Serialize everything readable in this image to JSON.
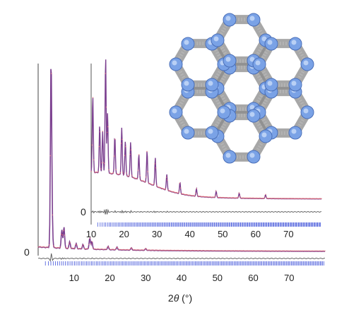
{
  "chart_data": [
    {
      "type": "line",
      "panel": "main",
      "xlabel_prefix": "2",
      "xlabel_symbol": "θ",
      "xlabel_suffix": " (°)",
      "xlim": [
        0,
        80
      ],
      "x_ticks": [
        "10",
        "20",
        "30",
        "40",
        "50",
        "60",
        "70"
      ],
      "x_tick_values": [
        10,
        20,
        30,
        40,
        50,
        60,
        70
      ],
      "difference_zero_label": "0",
      "peaks": [
        {
          "x": 3.6,
          "y": 330
        },
        {
          "x": 3.9,
          "y": 35
        },
        {
          "x": 6.6,
          "y": 32
        },
        {
          "x": 7.2,
          "y": 38
        },
        {
          "x": 8.8,
          "y": 12
        },
        {
          "x": 10.6,
          "y": 9
        },
        {
          "x": 12.5,
          "y": 8
        },
        {
          "x": 14.4,
          "y": 20
        },
        {
          "x": 15.0,
          "y": 14
        },
        {
          "x": 19.5,
          "y": 6
        },
        {
          "x": 22.0,
          "y": 5
        },
        {
          "x": 26.0,
          "y": 4
        },
        {
          "x": 30.0,
          "y": 3
        }
      ],
      "series": [
        {
          "role": "observed",
          "color": "#e0707a"
        },
        {
          "role": "calculated",
          "color": "#7b3f8f"
        },
        {
          "role": "difference",
          "color": "#555555"
        },
        {
          "role": "reflections",
          "color": "#2a3fd6"
        }
      ]
    },
    {
      "type": "line",
      "panel": "inset",
      "xlim": [
        10,
        80
      ],
      "x_ticks": [
        "10",
        "20",
        "30",
        "40",
        "50",
        "60",
        "70"
      ],
      "x_tick_values": [
        10,
        20,
        30,
        40,
        50,
        60,
        70
      ],
      "difference_zero_label": "0",
      "peaks": [
        {
          "x": 10.5,
          "y": 120
        },
        {
          "x": 12.6,
          "y": 75
        },
        {
          "x": 13.5,
          "y": 65
        },
        {
          "x": 14.4,
          "y": 185
        },
        {
          "x": 15.0,
          "y": 95
        },
        {
          "x": 17.2,
          "y": 60
        },
        {
          "x": 19.3,
          "y": 75
        },
        {
          "x": 20.4,
          "y": 55
        },
        {
          "x": 22.0,
          "y": 55
        },
        {
          "x": 24.5,
          "y": 40
        },
        {
          "x": 27.0,
          "y": 50
        },
        {
          "x": 29.5,
          "y": 45
        },
        {
          "x": 33.0,
          "y": 25
        },
        {
          "x": 37.0,
          "y": 18
        },
        {
          "x": 42.0,
          "y": 12
        },
        {
          "x": 48.0,
          "y": 10
        },
        {
          "x": 55.0,
          "y": 8
        },
        {
          "x": 63.0,
          "y": 6
        }
      ],
      "series": [
        {
          "role": "observed",
          "color": "#e0707a"
        },
        {
          "role": "calculated",
          "color": "#7b3f8f"
        },
        {
          "role": "difference",
          "color": "#555555"
        },
        {
          "role": "reflections",
          "color": "#2a3fd6"
        }
      ]
    }
  ],
  "structure_image": {
    "node_color": "#7aa2e6",
    "framework_color": "#8a8a8a"
  }
}
